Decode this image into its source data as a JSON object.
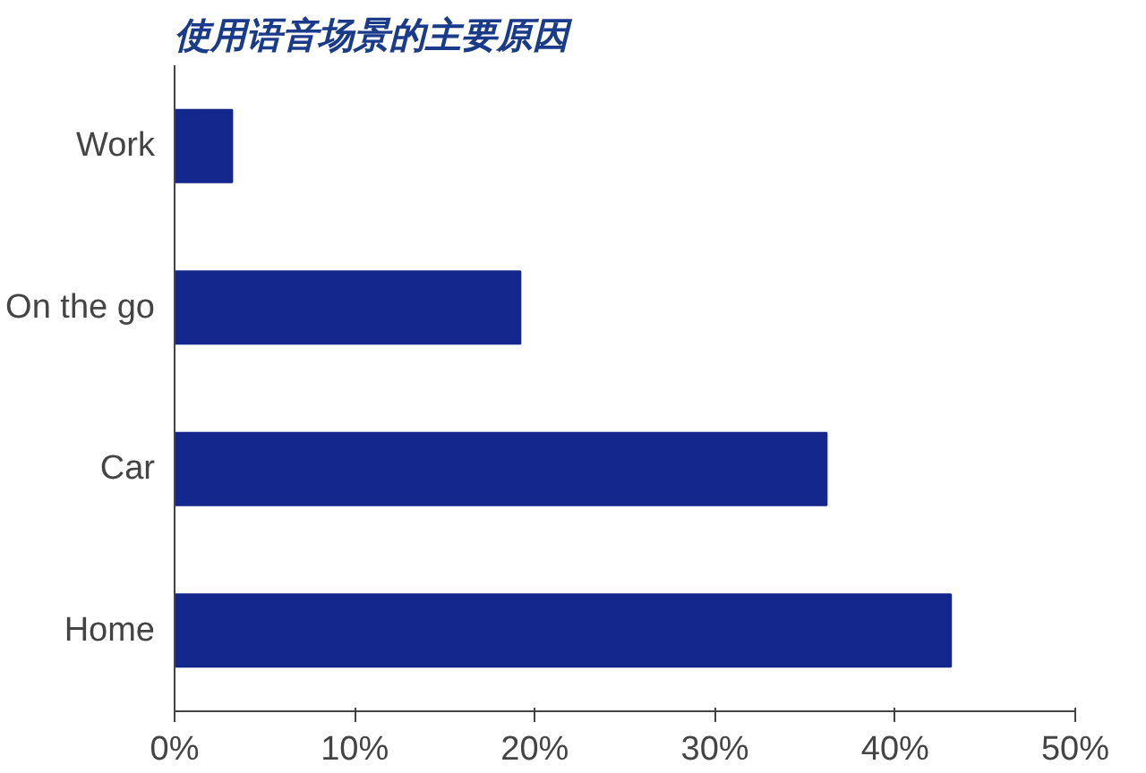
{
  "chart_data": {
    "type": "bar",
    "orientation": "horizontal",
    "title": "使用语音场景的主要原因",
    "categories": [
      "Work",
      "On the go",
      "Car",
      "Home"
    ],
    "values": [
      3.2,
      19.2,
      36.2,
      43.1
    ],
    "color": "#13278c",
    "xlim": [
      0,
      50
    ],
    "xticks": [
      {
        "value": 0,
        "label": "0%"
      },
      {
        "value": 10,
        "label": "10%"
      },
      {
        "value": 20,
        "label": "20%"
      },
      {
        "value": 30,
        "label": "30%"
      },
      {
        "value": 40,
        "label": "40%"
      },
      {
        "value": 50,
        "label": "50%"
      }
    ],
    "grid": false
  }
}
